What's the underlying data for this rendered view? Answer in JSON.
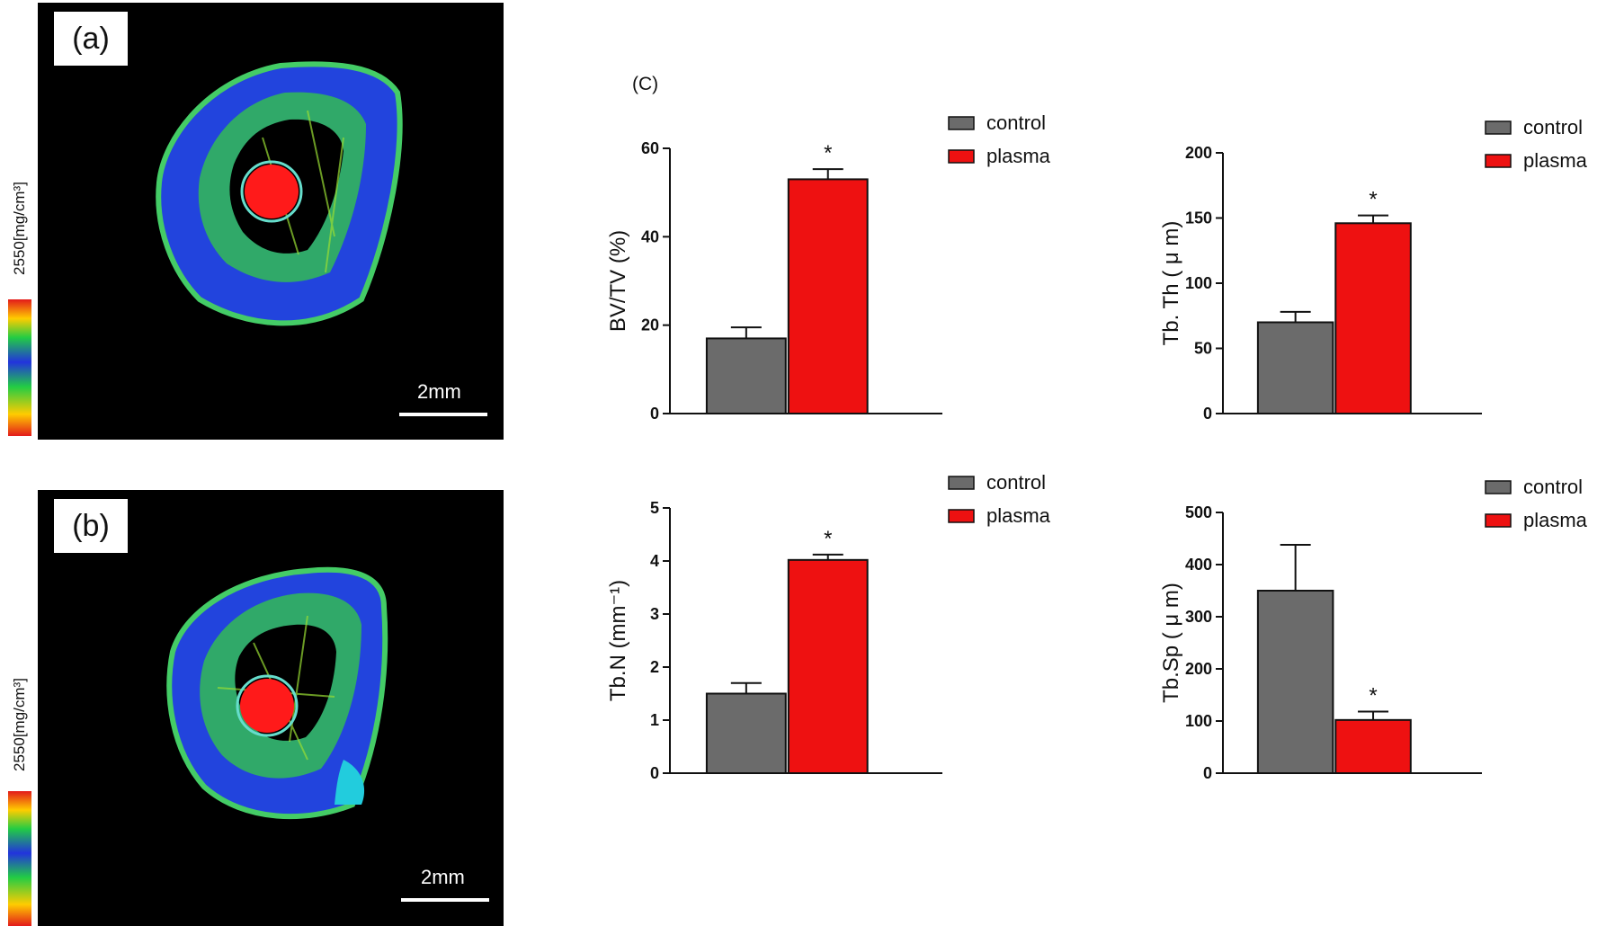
{
  "panels": [
    {
      "label": "(a)",
      "scale_label": "2mm",
      "colorbar_label": "2550[mg/cm³]"
    },
    {
      "label": "(b)",
      "scale_label": "2mm",
      "colorbar_label": "2550[mg/cm³]"
    }
  ],
  "c_label": "(C)",
  "colors": {
    "control": "#6b6b6b",
    "plasma": "#ee1111",
    "micro_bg": "#000000"
  },
  "chart_data": [
    {
      "type": "bar",
      "title": "",
      "xlabel": "",
      "ylabel": "BV/TV (%)",
      "categories": [
        "control",
        "plasma"
      ],
      "values": [
        17,
        53
      ],
      "errors": [
        2.5,
        2.3
      ],
      "significance": [
        "",
        "*"
      ],
      "ylim": [
        0,
        60
      ],
      "yticks": [
        0,
        20,
        40,
        60
      ],
      "legend": [
        "control",
        "plasma"
      ],
      "legend_position": "top-right",
      "grid": false
    },
    {
      "type": "bar",
      "title": "",
      "xlabel": "",
      "ylabel": "Tb. Th ( μ m)",
      "categories": [
        "control",
        "plasma"
      ],
      "values": [
        70,
        146
      ],
      "errors": [
        8,
        6
      ],
      "significance": [
        "",
        "*"
      ],
      "ylim": [
        0,
        200
      ],
      "yticks": [
        0,
        50,
        100,
        150,
        200
      ],
      "legend": [
        "control",
        "plasma"
      ],
      "legend_position": "top-right",
      "grid": false
    },
    {
      "type": "bar",
      "title": "",
      "xlabel": "",
      "ylabel": "Tb.N (mm⁻¹)",
      "categories": [
        "control",
        "plasma"
      ],
      "values": [
        1.5,
        4.02
      ],
      "errors": [
        0.2,
        0.1
      ],
      "significance": [
        "",
        "*"
      ],
      "ylim": [
        0,
        5
      ],
      "yticks": [
        0,
        1,
        2,
        3,
        4,
        5
      ],
      "legend": [
        "control",
        "plasma"
      ],
      "legend_position": "top-right",
      "grid": false
    },
    {
      "type": "bar",
      "title": "",
      "xlabel": "",
      "ylabel": "Tb.Sp ( μ m)",
      "categories": [
        "control",
        "plasma"
      ],
      "values": [
        350,
        102
      ],
      "errors": [
        88,
        16
      ],
      "significance": [
        "",
        "*"
      ],
      "ylim": [
        0,
        500
      ],
      "yticks": [
        0,
        100,
        200,
        300,
        400,
        500
      ],
      "legend": [
        "control",
        "plasma"
      ],
      "legend_position": "top-right",
      "grid": false
    }
  ]
}
